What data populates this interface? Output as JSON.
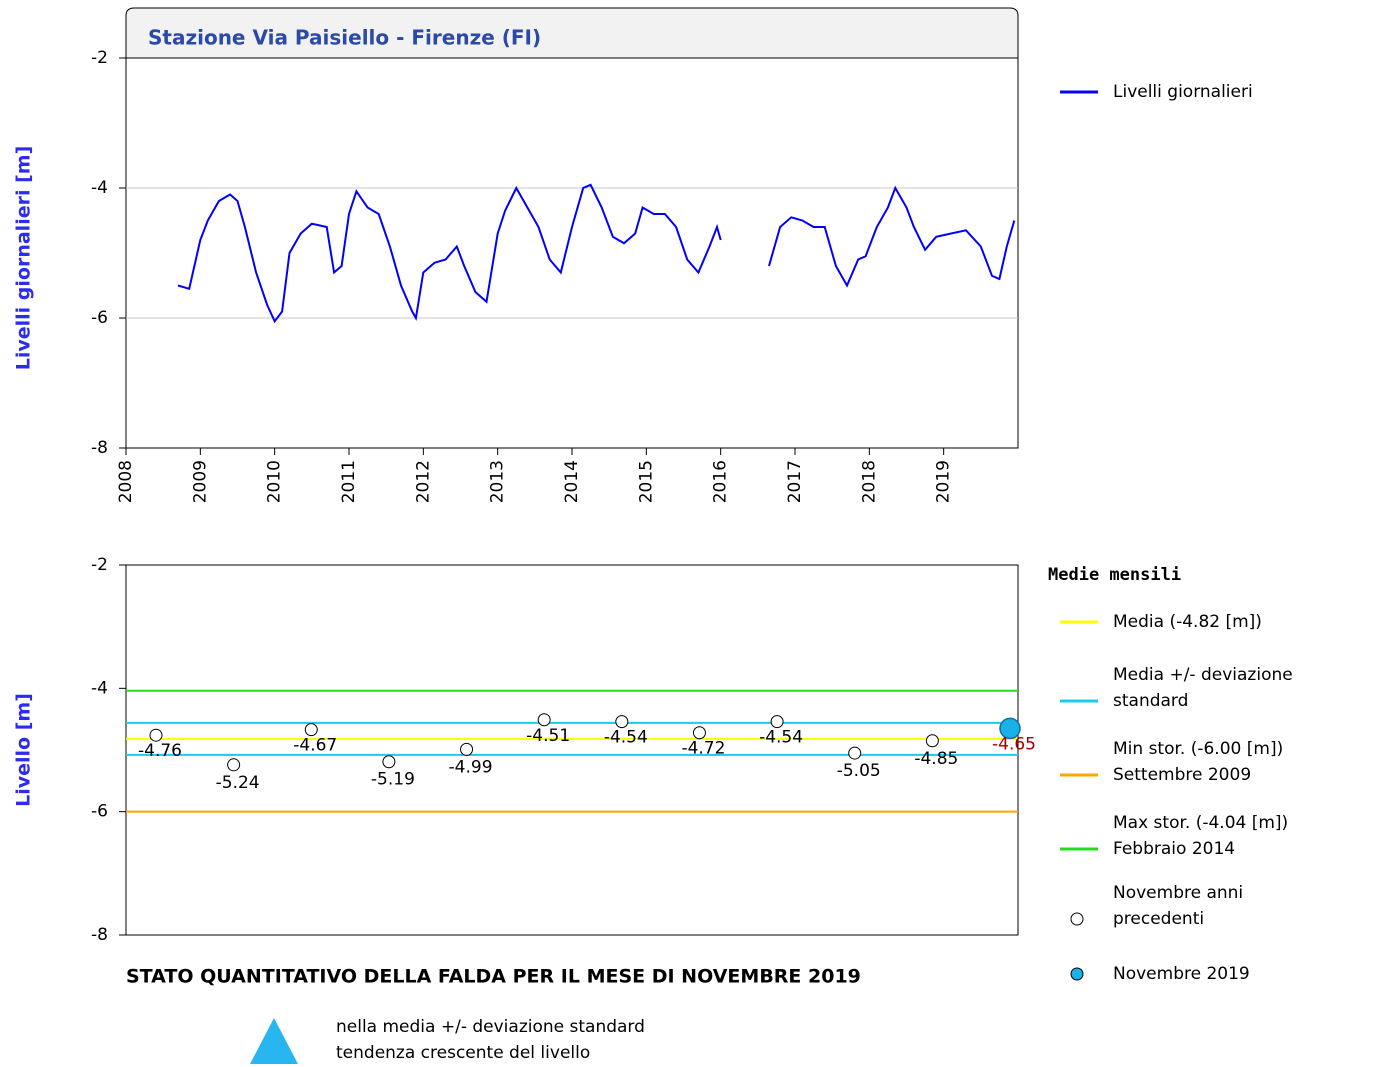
{
  "chart_data": [
    {
      "type": "line",
      "title": "Stazione Via Paisiello - Firenze (FI)",
      "ylabel": "Livelli giornalieri [m]",
      "xlim": [
        2008,
        2020
      ],
      "xticks": [
        2008,
        2009,
        2010,
        2011,
        2012,
        2013,
        2014,
        2015,
        2016,
        2017,
        2018,
        2019
      ],
      "ylim": [
        -8,
        -2
      ],
      "yticks": [
        -2,
        -4,
        -6,
        -8
      ],
      "grid": true,
      "x": [
        2008.7,
        2008.85,
        2009.0,
        2009.1,
        2009.25,
        2009.4,
        2009.5,
        2009.6,
        2009.75,
        2009.9,
        2010.0,
        2010.1,
        2010.2,
        2010.35,
        2010.5,
        2010.7,
        2010.8,
        2010.9,
        2011.0,
        2011.1,
        2011.25,
        2011.4,
        2011.55,
        2011.7,
        2011.85,
        2011.9,
        2012.0,
        2012.15,
        2012.3,
        2012.45,
        2012.55,
        2012.7,
        2012.85,
        2013.0,
        2013.1,
        2013.25,
        2013.4,
        2013.55,
        2013.7,
        2013.85,
        2014.0,
        2014.15,
        2014.25,
        2014.4,
        2014.55,
        2014.7,
        2014.85,
        2014.95,
        2015.1,
        2015.25,
        2015.4,
        2015.55,
        2015.7,
        2015.85,
        2015.95,
        2016.0,
        2016.5,
        2016.65,
        2016.8,
        2016.95,
        2017.1,
        2017.25,
        2017.4,
        2017.55,
        2017.7,
        2017.85,
        2017.95,
        2018.1,
        2018.25,
        2018.35,
        2018.5,
        2018.6,
        2018.75,
        2018.9,
        2019.1,
        2019.3,
        2019.5,
        2019.65,
        2019.75,
        2019.85,
        2019.95
      ],
      "series": [
        {
          "name": "Livelli giornalieri",
          "color": "#0000ff",
          "values": [
            -5.5,
            -5.55,
            -4.8,
            -4.5,
            -4.2,
            -4.1,
            -4.2,
            -4.6,
            -5.3,
            -5.8,
            -6.05,
            -5.9,
            -5.0,
            -4.7,
            -4.55,
            -4.6,
            -5.3,
            -5.2,
            -4.4,
            -4.05,
            -4.3,
            -4.4,
            -4.9,
            -5.5,
            -5.9,
            -6.0,
            -5.3,
            -5.15,
            -5.1,
            -4.9,
            -5.2,
            -5.6,
            -5.75,
            -4.7,
            -4.35,
            -4.0,
            -4.3,
            -4.6,
            -5.1,
            -5.3,
            -4.6,
            -4.0,
            -3.95,
            -4.3,
            -4.75,
            -4.85,
            -4.7,
            -4.3,
            -4.4,
            -4.4,
            -4.6,
            -5.1,
            -5.3,
            -4.9,
            -4.6,
            -4.8,
            null,
            -5.2,
            -4.6,
            -4.45,
            -4.5,
            -4.6,
            -4.6,
            -5.2,
            -5.5,
            -5.1,
            -5.05,
            -4.6,
            -4.3,
            -4.0,
            -4.3,
            -4.6,
            -4.95,
            -4.75,
            -4.7,
            -4.65,
            -4.9,
            -5.35,
            -5.4,
            -4.9,
            -4.5
          ]
        }
      ]
    },
    {
      "type": "scatter",
      "ylabel": "Livello [m]",
      "ylim": [
        -8,
        -2
      ],
      "yticks": [
        -2,
        -4,
        -6,
        -8
      ],
      "categories": [
        null,
        null,
        null,
        null,
        null,
        null,
        null,
        null,
        null,
        null,
        null,
        null
      ],
      "legend_title": "Medie mensili",
      "reference_lines": [
        {
          "name": [
            "Media (-4.82 [m])"
          ],
          "color": "#ffff00",
          "values": [
            -4.82
          ]
        },
        {
          "name": [
            "Media +/- deviazione",
            "standard"
          ],
          "color": "#1ec8f0",
          "values": [
            -4.56,
            -5.08
          ]
        },
        {
          "name": [
            "Min stor. (-6.00 [m])",
            "Settembre 2009"
          ],
          "color": "#ffa500",
          "values": [
            -6
          ]
        },
        {
          "name": [
            "Max stor. (-4.04 [m])",
            "Febbraio 2014"
          ],
          "color": "#22dd22",
          "values": [
            -4.04
          ]
        }
      ],
      "series": [
        {
          "name": [
            "Novembre anni",
            "precedenti"
          ],
          "color": "#ffffff",
          "label_color": "#000000",
          "values": [
            -4.76,
            -5.24,
            -4.67,
            -5.19,
            -4.99,
            -4.51,
            -4.54,
            -4.72,
            -4.54,
            -5.05,
            -4.85,
            null
          ]
        },
        {
          "name": [
            "Novembre 2019"
          ],
          "color": "#1ab0e8",
          "label_color": "#a00000",
          "values": [
            null,
            null,
            null,
            null,
            null,
            null,
            null,
            null,
            null,
            null,
            null,
            -4.65
          ]
        }
      ]
    }
  ],
  "status": {
    "title": "STATO QUANTITATIVO DELLA FALDA PER IL MESE DI NOVEMBRE 2019",
    "lines": [
      "nella media +/- deviazione standard",
      "tendenza crescente del livello"
    ]
  }
}
